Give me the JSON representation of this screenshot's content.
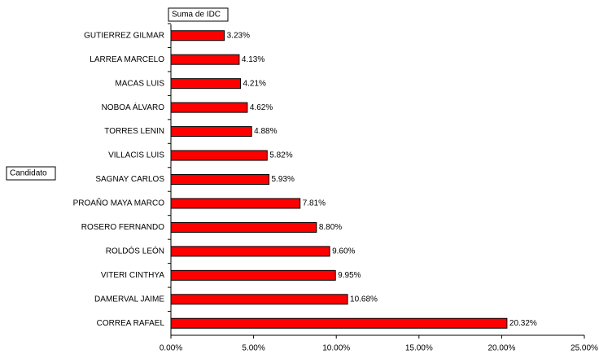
{
  "chart_data": {
    "type": "bar",
    "orientation": "horizontal",
    "value_field": "Suma de IDC",
    "category_field": "Candidato",
    "categories": [
      "GUTIERREZ GILMAR",
      "LARREA MARCELO",
      "MACAS LUIS",
      "NOBOA ÁLVARO",
      "TORRES LENIN",
      "VILLACIS LUIS",
      "SAGNAY CARLOS",
      "PROAÑO MAYA MARCO",
      "ROSERO FERNANDO",
      "ROLDÓS LEÓN",
      "VITERI CINTHYA",
      "DAMERVAL JAIME",
      "CORREA RAFAEL"
    ],
    "values": [
      3.23,
      4.13,
      4.21,
      4.62,
      4.88,
      5.82,
      5.93,
      7.81,
      8.8,
      9.6,
      9.95,
      10.68,
      20.32
    ],
    "value_labels": [
      "3.23%",
      "4.13%",
      "4.21%",
      "4.62%",
      "4.88%",
      "5.82%",
      "5.93%",
      "7.81%",
      "8.80%",
      "9.60%",
      "9.95%",
      "10.68%",
      "20.32%"
    ],
    "color": "#ff0000",
    "xlim": [
      0,
      25
    ],
    "xticks": [
      {
        "value": 0,
        "label": "0.00%"
      },
      {
        "value": 5,
        "label": "5.00%"
      },
      {
        "value": 10,
        "label": "10.00%"
      },
      {
        "value": 15,
        "label": "15.00%"
      },
      {
        "value": 20,
        "label": "20.00%"
      },
      {
        "value": 25,
        "label": "25.00%"
      }
    ],
    "grid": false
  }
}
